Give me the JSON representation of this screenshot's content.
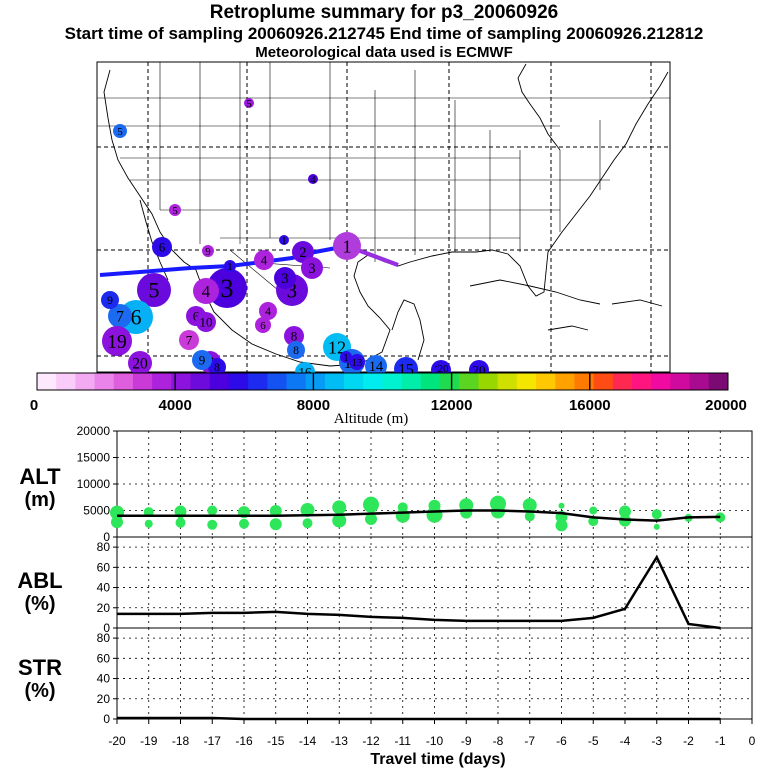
{
  "titles": {
    "line1": "Retroplume summary for p3_20060926",
    "line2": "Start time of sampling 20060926.212745     End time of sampling 20060926.212812",
    "line3": "Meteorological data used is ECMWF"
  },
  "colorbar": {
    "label": "Altitude (m)",
    "ticks": [
      "0",
      "4000",
      "8000",
      "12000",
      "16000",
      "20000"
    ],
    "colors": [
      "#fde8fd",
      "#f9ccf9",
      "#f3aaf3",
      "#ea83ea",
      "#de5ede",
      "#c93ad8",
      "#ad22dc",
      "#8c12dd",
      "#6d0adc",
      "#4b00dd",
      "#2d0ae8",
      "#1c2bef",
      "#1452f2",
      "#0c78f4",
      "#069cf5",
      "#02bdf4",
      "#00d8f2",
      "#00ecee",
      "#00f2d0",
      "#00eeaa",
      "#00e47e",
      "#20db4e",
      "#5ad620",
      "#98d800",
      "#cfe000",
      "#f5e600",
      "#ffc800",
      "#ffa200",
      "#ff7a00",
      "#ff4c14",
      "#ff2850",
      "#ff1480",
      "#f00aa0",
      "#d00a9e",
      "#a80a90",
      "#7c0a74"
    ]
  },
  "map": {
    "labels": [
      {
        "t": "1",
        "c": "#b03cdc"
      },
      {
        "t": "2",
        "c": "#6a0adc"
      },
      {
        "t": "3",
        "c": "#8c12dd"
      },
      {
        "t": "3",
        "c": "#6a0adc"
      },
      {
        "t": "3",
        "c": "#4b00dd"
      },
      {
        "t": "3",
        "c": "#4b00dd"
      },
      {
        "t": "4",
        "c": "#ad22dc"
      },
      {
        "t": "4",
        "c": "#ad22dc"
      },
      {
        "t": "4",
        "c": "#ad22dc"
      },
      {
        "t": "4",
        "c": "#4b00dd"
      },
      {
        "t": "5",
        "c": "#1c6af0"
      },
      {
        "t": "5",
        "c": "#ad22dc"
      },
      {
        "t": "5",
        "c": "#9c18dc"
      },
      {
        "t": "5",
        "c": "#6a0adc"
      },
      {
        "t": "6",
        "c": "#2d0ae8"
      },
      {
        "t": "6",
        "c": "#06b0f5"
      },
      {
        "t": "6",
        "c": "#8c12dd"
      },
      {
        "t": "6",
        "c": "#ad22dc"
      },
      {
        "t": "7",
        "c": "#1c6af0"
      },
      {
        "t": "7",
        "c": "#c93ad8"
      },
      {
        "t": "7",
        "c": "#8c12dd"
      },
      {
        "t": "8",
        "c": "#8c12dd"
      },
      {
        "t": "8",
        "c": "#2d0ae8"
      },
      {
        "t": "8",
        "c": "#1c6af0"
      },
      {
        "t": "9",
        "c": "#1c2bef"
      },
      {
        "t": "9",
        "c": "#1c6af0"
      },
      {
        "t": "9",
        "c": "#ad22dc"
      },
      {
        "t": "10",
        "c": "#8c12dd"
      },
      {
        "t": "12",
        "c": "#02bdf4"
      },
      {
        "t": "13",
        "c": "#1c6af0"
      },
      {
        "t": "14",
        "c": "#1c6af0"
      },
      {
        "t": "15",
        "c": "#1c2bef"
      },
      {
        "t": "16",
        "c": "#06b0f5"
      },
      {
        "t": "19",
        "c": "#8c12dd"
      },
      {
        "t": "20",
        "c": "#8c12dd"
      },
      {
        "t": "1",
        "c": "#2d0ae8"
      },
      {
        "t": "1",
        "c": "#2d0ae8"
      },
      {
        "t": "1",
        "c": "#2d0ae8"
      },
      {
        "t": "20",
        "c": "#2d0ae8"
      },
      {
        "t": "20",
        "c": "#2d0ae8"
      },
      {
        "t": "20",
        "c": "#2d0ae8"
      },
      {
        "t": "13",
        "c": "#2d0ae8"
      }
    ]
  },
  "chart_data": [
    {
      "type": "scatter",
      "name": "ALT",
      "ylabel": "ALT\n(m)",
      "ylim": [
        0,
        20000
      ],
      "xlim": [
        -20,
        0
      ],
      "yticks": [
        "0",
        "5000",
        "10000",
        "15000",
        "20000"
      ],
      "grid": true,
      "point_color": "#2ee65a",
      "points": [
        {
          "x": -20,
          "y": 4600
        },
        {
          "x": -20,
          "y": 2800
        },
        {
          "x": -19,
          "y": 4700
        },
        {
          "x": -19,
          "y": 2500
        },
        {
          "x": -18,
          "y": 4800
        },
        {
          "x": -18,
          "y": 2700
        },
        {
          "x": -18,
          "y": 3900
        },
        {
          "x": -17,
          "y": 5000
        },
        {
          "x": -17,
          "y": 2300
        },
        {
          "x": -16,
          "y": 4700
        },
        {
          "x": -16,
          "y": 2500
        },
        {
          "x": -15,
          "y": 4900
        },
        {
          "x": -15,
          "y": 2400
        },
        {
          "x": -14,
          "y": 5100
        },
        {
          "x": -14,
          "y": 2600
        },
        {
          "x": -13,
          "y": 5600
        },
        {
          "x": -13,
          "y": 3100
        },
        {
          "x": -12,
          "y": 6100
        },
        {
          "x": -12,
          "y": 3400
        },
        {
          "x": -11,
          "y": 5600
        },
        {
          "x": -11,
          "y": 4000
        },
        {
          "x": -10,
          "y": 5900
        },
        {
          "x": -10,
          "y": 4200
        },
        {
          "x": -9,
          "y": 6000
        },
        {
          "x": -9,
          "y": 4600
        },
        {
          "x": -8,
          "y": 6300
        },
        {
          "x": -8,
          "y": 4800
        },
        {
          "x": -7,
          "y": 6000
        },
        {
          "x": -7,
          "y": 3900
        },
        {
          "x": -6,
          "y": 5900
        },
        {
          "x": -6,
          "y": 3800
        },
        {
          "x": -6,
          "y": 2200
        },
        {
          "x": -5,
          "y": 5000
        },
        {
          "x": -5,
          "y": 3000
        },
        {
          "x": -4,
          "y": 4800
        },
        {
          "x": -4,
          "y": 3100
        },
        {
          "x": -3,
          "y": 4300
        },
        {
          "x": -3,
          "y": 1900
        },
        {
          "x": -2,
          "y": 3600
        },
        {
          "x": -1,
          "y": 3700
        }
      ],
      "mean_line": {
        "x": [
          -20,
          -19,
          -18,
          -17,
          -16,
          -15,
          -14,
          -13,
          -12,
          -11,
          -10,
          -9,
          -8,
          -7,
          -6,
          -5,
          -4,
          -3,
          -2,
          -1
        ],
        "y": [
          4000,
          4000,
          4000,
          4000,
          4000,
          4000,
          4100,
          4200,
          4400,
          4600,
          4800,
          5000,
          5000,
          4800,
          4500,
          3700,
          3300,
          3100,
          3700,
          3800
        ]
      }
    },
    {
      "type": "line",
      "name": "ABL",
      "ylabel": "ABL\n(%)",
      "ylim": [
        0,
        90
      ],
      "xlim": [
        -20,
        0
      ],
      "yticks": [
        "0",
        "20",
        "40",
        "60",
        "80"
      ],
      "grid": true,
      "x": [
        -20,
        -19,
        -18,
        -17,
        -16,
        -15,
        -14,
        -13,
        -12,
        -11,
        -10,
        -9,
        -8,
        -7,
        -6,
        -5,
        -4,
        -3,
        -2,
        -1
      ],
      "y": [
        14,
        14,
        14,
        15,
        15,
        16,
        14,
        13,
        11,
        10,
        8,
        7,
        7,
        7,
        7,
        10,
        19,
        70,
        4,
        0
      ]
    },
    {
      "type": "line",
      "name": "STR",
      "ylabel": "STR\n(%)",
      "ylim": [
        0,
        90
      ],
      "xlim": [
        -20,
        0
      ],
      "yticks": [
        "0",
        "20",
        "40",
        "60",
        "80"
      ],
      "grid": true,
      "x": [
        -20,
        -19,
        -18,
        -17,
        -16,
        -15,
        -14,
        -13,
        -12,
        -11,
        -10,
        -9,
        -8,
        -7,
        -6,
        -5,
        -4,
        -3,
        -2,
        -1
      ],
      "y": [
        1,
        1,
        1,
        1,
        0,
        0,
        0,
        0,
        0,
        0,
        0,
        0,
        0,
        0,
        0,
        0,
        0,
        0,
        0,
        0
      ]
    }
  ],
  "xaxis": {
    "ticks": [
      "-20",
      "-19",
      "-18",
      "-17",
      "-16",
      "-15",
      "-14",
      "-13",
      "-12",
      "-11",
      "-10",
      "-9",
      "-8",
      "-7",
      "-6",
      "-5",
      "-4",
      "-3",
      "-2",
      "-1",
      "0"
    ],
    "label": "Travel time (days)"
  }
}
